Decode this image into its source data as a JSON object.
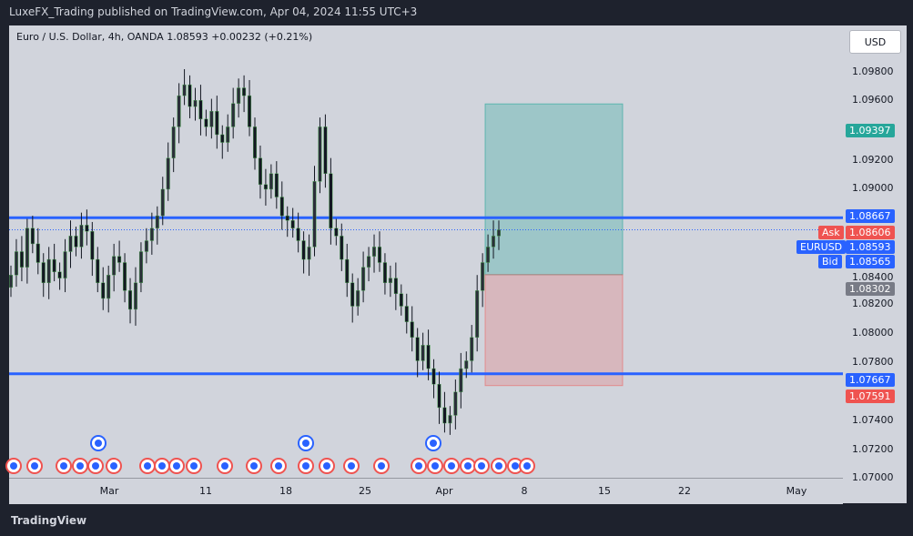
{
  "header": {
    "published": "LuxeFX_Trading published on TradingView.com, Apr 04, 2024 11:55 UTC+3"
  },
  "legend": {
    "text": "Euro / U.S. Dollar, 4h, OANDA  1.08593  +0.00232 (+0.21%)"
  },
  "currency_button": "USD",
  "brand": "TradingView",
  "price_ticks": [
    "1.09800",
    "1.09600",
    "1.09200",
    "1.09000",
    "1.08400",
    "1.08200",
    "1.08000",
    "1.07800",
    "1.07400",
    "1.07200",
    "1.07000"
  ],
  "time_ticks": [
    "Mar",
    "11",
    "18",
    "25",
    "Apr",
    "8",
    "15",
    "22",
    "May"
  ],
  "tags": {
    "target": "1.09397",
    "resistance": "1.08667",
    "ask_label": "Ask",
    "ask": "1.08606",
    "symbol_label": "EURUSD",
    "symbol": "1.08593",
    "bid_label": "Bid",
    "bid": "1.08565",
    "entry": "1.08302",
    "support": "1.07667",
    "stop": "1.07591"
  },
  "colors": {
    "bg": "#d1d4dc",
    "candle": "#131722",
    "line": "#2962ff",
    "profit": "#26a69a",
    "loss": "#ef5350"
  },
  "chart_data": {
    "type": "candlestick",
    "title": "Euro / U.S. Dollar, 4h, OANDA",
    "ylim": [
      1.07,
      1.099
    ],
    "horizontal_lines": [
      1.08667,
      1.07667
    ],
    "position_tool": {
      "type": "long",
      "target": 1.09397,
      "entry": 1.08302,
      "stop": 1.07591
    },
    "series": [
      {
        "name": "EURUSD",
        "values": [
          1.083,
          1.0845,
          1.0835,
          1.086,
          1.085,
          1.0838,
          1.0825,
          1.084,
          1.0832,
          1.0828,
          1.0845,
          1.0855,
          1.0848,
          1.0862,
          1.0858,
          1.084,
          1.0825,
          1.0815,
          1.083,
          1.0842,
          1.0838,
          1.082,
          1.0808,
          1.0825,
          1.0845,
          1.0852,
          1.086,
          1.0868,
          1.0885,
          1.0905,
          1.0925,
          1.0945,
          1.0952,
          1.0938,
          1.0942,
          1.093,
          1.0925,
          1.0935,
          1.092,
          1.0915,
          1.0925,
          1.094,
          1.095,
          1.0945,
          1.0925,
          1.0905,
          1.0888,
          1.0885,
          1.0895,
          1.088,
          1.0868,
          1.0865,
          1.086,
          1.0852,
          1.084,
          1.0848,
          1.089,
          1.0925,
          1.0895,
          1.086,
          1.0855,
          1.084,
          1.0825,
          1.081,
          1.082,
          1.0835,
          1.0842,
          1.0848,
          1.0838,
          1.0825,
          1.0828,
          1.0818,
          1.081,
          1.08,
          1.079,
          1.0775,
          1.0785,
          1.077,
          1.076,
          1.0745,
          1.0735,
          1.074,
          1.0755,
          1.077,
          1.0775,
          1.079,
          1.082,
          1.0838,
          1.0848,
          1.0855,
          1.0859
        ]
      }
    ]
  }
}
